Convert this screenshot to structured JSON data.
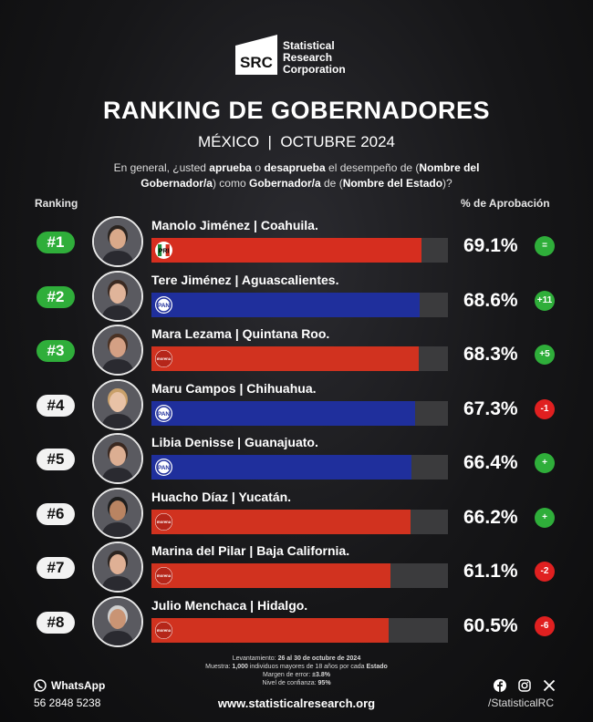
{
  "header": {
    "logo_mark": "SRC",
    "logo_line1": "Statistical",
    "logo_line2": "Research",
    "logo_line3": "Corporation",
    "title": "RANKING DE GOBERNADORES",
    "subtitle": "MÉXICO  |  OCTUBRE 2024",
    "question_parts": [
      {
        "t": "En general, ¿usted ",
        "b": false
      },
      {
        "t": "aprueba",
        "b": true
      },
      {
        "t": " o ",
        "b": false
      },
      {
        "t": "desaprueba",
        "b": true
      },
      {
        "t": " el desempeño de (",
        "b": false
      },
      {
        "t": "Nombre del Gobernador/a",
        "b": true
      },
      {
        "t": ") como ",
        "b": false
      },
      {
        "t": "Gobernador/a",
        "b": true
      },
      {
        "t": " de (",
        "b": false
      },
      {
        "t": "Nombre del Estado",
        "b": true
      },
      {
        "t": ")?",
        "b": false
      }
    ],
    "col_ranking": "Ranking",
    "col_percent": "% de Aprobación"
  },
  "colors": {
    "pri_bar": "#d62e1f",
    "pan_bar": "#1f2f9c",
    "morena_bar": "#d1321f",
    "green_badge": "#2fae3a",
    "white_badge": "#f2f2f2",
    "red_badge": "#e02020",
    "track": "#3b3b3d"
  },
  "chart_data": {
    "type": "bar",
    "orientation": "horizontal",
    "ylabel": "% de Aprobación",
    "xlim": [
      0,
      100
    ],
    "items": [
      {
        "rank": "#1",
        "name": "Manolo Jiménez",
        "state": "Coahuila.",
        "party": "PRI",
        "value": 69.1,
        "label": "69.1%",
        "change": "=",
        "change_type": "green",
        "badge": "green"
      },
      {
        "rank": "#2",
        "name": "Tere Jiménez",
        "state": "Aguascalientes.",
        "party": "PAN",
        "value": 68.6,
        "label": "68.6%",
        "change": "+11",
        "change_type": "green",
        "badge": "green"
      },
      {
        "rank": "#3",
        "name": "Mara Lezama",
        "state": "Quintana Roo.",
        "party": "morena",
        "value": 68.3,
        "label": "68.3%",
        "change": "+5",
        "change_type": "green",
        "badge": "green"
      },
      {
        "rank": "#4",
        "name": "Maru Campos",
        "state": "Chihuahua.",
        "party": "PAN",
        "value": 67.3,
        "label": "67.3%",
        "change": "-1",
        "change_type": "red",
        "badge": "white"
      },
      {
        "rank": "#5",
        "name": "Libia Denisse",
        "state": "Guanajuato.",
        "party": "PAN",
        "value": 66.4,
        "label": "66.4%",
        "change": "+",
        "change_type": "green",
        "badge": "white"
      },
      {
        "rank": "#6",
        "name": "Huacho Díaz",
        "state": "Yucatán.",
        "party": "morena",
        "value": 66.2,
        "label": "66.2%",
        "change": "+",
        "change_type": "green",
        "badge": "white"
      },
      {
        "rank": "#7",
        "name": "Marina del Pilar",
        "state": "Baja California.",
        "party": "morena",
        "value": 61.1,
        "label": "61.1%",
        "change": "-2",
        "change_type": "red",
        "badge": "white"
      },
      {
        "rank": "#8",
        "name": "Julio Menchaca",
        "state": "Hidalgo.",
        "party": "morena",
        "value": 60.5,
        "label": "60.5%",
        "change": "-6",
        "change_type": "red",
        "badge": "white"
      }
    ]
  },
  "footer": {
    "method_line1_a": "Levantamiento: ",
    "method_line1_b": "26 al 30 de octubre de 2024",
    "method_line2_a": "Muestra: ",
    "method_line2_b": "1,000",
    "method_line2_c": " individuos mayores de 18 años por cada ",
    "method_line2_d": "Estado",
    "method_line3_a": "Margen de error: ",
    "method_line3_b": "±3.8%",
    "method_line4_a": "Nivel de confianza: ",
    "method_line4_b": "95%",
    "whatsapp_label": "WhatsApp",
    "phone": "56 2848 5238",
    "website": "www.statisticalresearch.org",
    "handle": "/StatisticalRC",
    "icons": [
      "whatsapp-icon",
      "facebook-icon",
      "instagram-icon",
      "x-icon"
    ]
  }
}
